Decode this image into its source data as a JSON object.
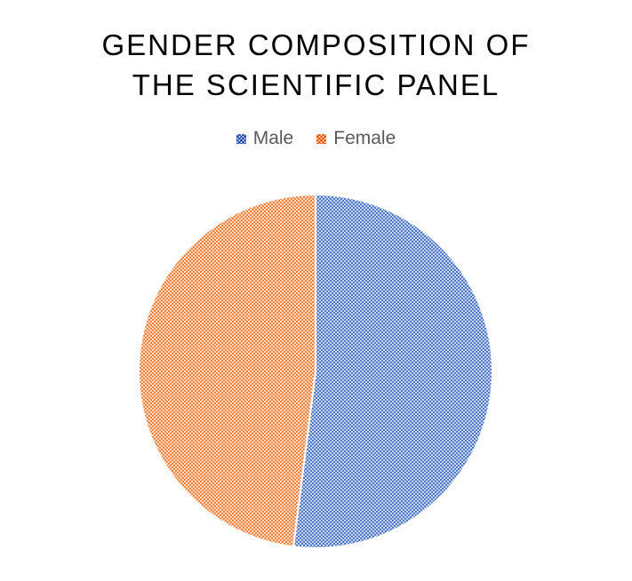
{
  "chart_data": {
    "type": "pie",
    "title_lines": [
      "GENDER COMPOSITION OF",
      "THE SCIENTIFIC PANEL"
    ],
    "categories": [
      "Male",
      "Female"
    ],
    "values": [
      52,
      48
    ],
    "colors": [
      "#4472C4",
      "#ED7D31"
    ],
    "fill_pattern": "crosshatch",
    "legend_position": "top",
    "start_angle_deg": 0
  }
}
